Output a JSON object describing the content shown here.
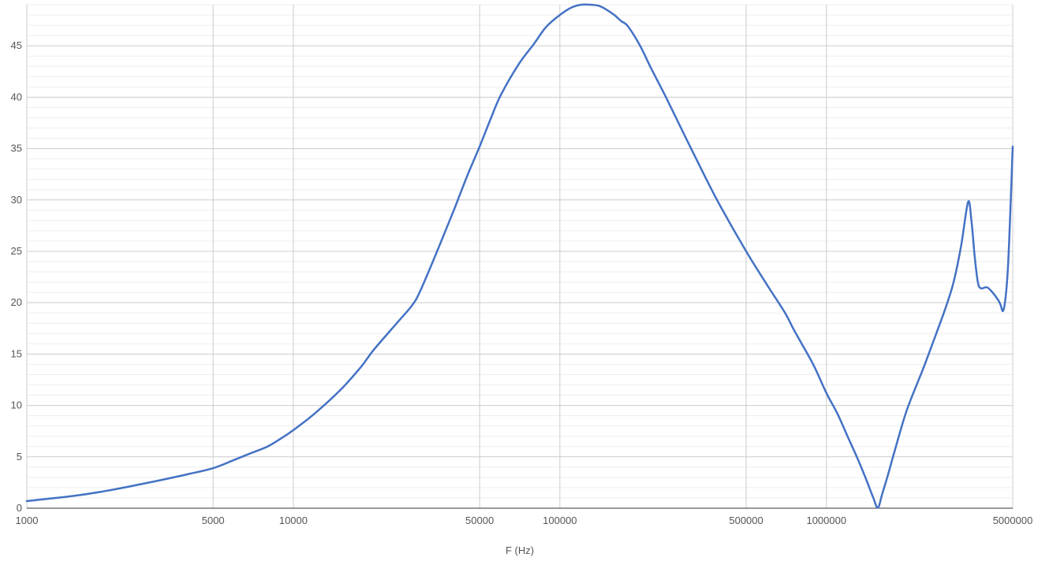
{
  "chart_data": {
    "type": "line",
    "title": "",
    "xlabel": "F (Hz)",
    "ylabel": "",
    "x_scale": "log",
    "xlim": [
      1000,
      5000000
    ],
    "ylim": [
      0,
      49
    ],
    "grid": true,
    "legend": "none",
    "x_ticks": [
      1000,
      5000,
      10000,
      50000,
      100000,
      500000,
      1000000,
      5000000
    ],
    "x_tick_labels": [
      "1000",
      "5000",
      "10000",
      "50000",
      "100000",
      "500000",
      "1000000",
      "5000000"
    ],
    "y_ticks": [
      0,
      5,
      10,
      15,
      20,
      25,
      30,
      35,
      40,
      45
    ],
    "y_tick_labels": [
      "0",
      "5",
      "10",
      "15",
      "20",
      "25",
      "30",
      "35",
      "40",
      "45"
    ],
    "series": [
      {
        "color": "#4472c4",
        "x": [
          1000,
          1500,
          2000,
          3000,
          4000,
          5000,
          6000,
          7000,
          8000,
          9000,
          10000,
          12000,
          15000,
          18000,
          20000,
          25000,
          28000,
          30000,
          35000,
          40000,
          45000,
          50000,
          55000,
          60000,
          70000,
          80000,
          85000,
          90000,
          100000,
          110000,
          120000,
          130000,
          140000,
          150000,
          160000,
          170000,
          180000,
          200000,
          220000,
          250000,
          300000,
          350000,
          400000,
          500000,
          600000,
          700000,
          750000,
          800000,
          900000,
          1000000,
          1100000,
          1200000,
          1300000,
          1400000,
          1500000,
          1560000,
          1620000,
          1700000,
          1800000,
          2000000,
          2300000,
          2500000,
          2800000,
          3000000,
          3200000,
          3400000,
          3500000,
          3600000,
          3700000,
          3800000,
          4000000,
          4200000,
          4400000,
          4500000,
          4600000,
          4700000,
          4800000,
          4900000,
          5000000
        ],
        "y": [
          0.7,
          1.2,
          1.7,
          2.6,
          3.3,
          3.9,
          4.7,
          5.4,
          6.0,
          6.8,
          7.6,
          9.2,
          11.5,
          13.8,
          15.4,
          18.3,
          19.8,
          21.2,
          25.3,
          29.0,
          32.4,
          35.2,
          37.9,
          40.2,
          43.2,
          45.2,
          46.2,
          47.0,
          48.0,
          48.7,
          49.0,
          49.0,
          48.9,
          48.5,
          48.0,
          47.4,
          46.9,
          45.0,
          42.8,
          40.0,
          35.8,
          32.3,
          29.4,
          25.0,
          21.7,
          19.0,
          17.5,
          16.2,
          13.8,
          11.2,
          9.2,
          7.0,
          5.0,
          3.0,
          1.0,
          0.05,
          1.4,
          3.2,
          5.5,
          9.5,
          13.5,
          16.0,
          19.5,
          22.0,
          25.5,
          29.8,
          28.0,
          24.5,
          22.0,
          21.4,
          21.5,
          21.0,
          20.3,
          19.8,
          19.2,
          20.5,
          23.5,
          29.0,
          35.2
        ]
      }
    ]
  }
}
